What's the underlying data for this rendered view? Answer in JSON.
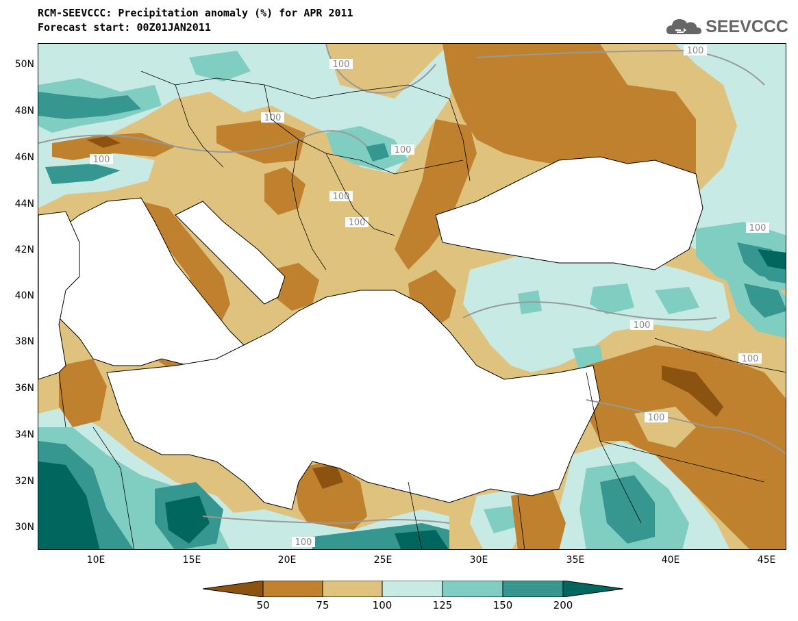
{
  "header": {
    "title_line1": "RCM-SEEVCCC: Precipitation anomaly (%) for APR 2011",
    "title_line2": "Forecast start: 00Z01JAN2011"
  },
  "logo": {
    "text": "SEEVCCC",
    "icon": "cloud-icon"
  },
  "map": {
    "lat_labels": [
      "50N",
      "48N",
      "46N",
      "44N",
      "42N",
      "40N",
      "38N",
      "36N",
      "34N",
      "32N",
      "30N"
    ],
    "lon_labels": [
      "10E",
      "15E",
      "20E",
      "25E",
      "30E",
      "35E",
      "40E",
      "45E"
    ],
    "contour_label": "100",
    "colors": {
      "below_50": "#8c520f",
      "50_75": "#bf812d",
      "75_100": "#dfc27d",
      "100_125": "#c7eae5",
      "125_150": "#80cdc1",
      "150_200": "#35978f",
      "above_200": "#01665e",
      "sea": "#ffffff",
      "contour": "#999999"
    }
  },
  "colorbar": {
    "labels": [
      "50",
      "75",
      "100",
      "125",
      "150",
      "200"
    ]
  }
}
